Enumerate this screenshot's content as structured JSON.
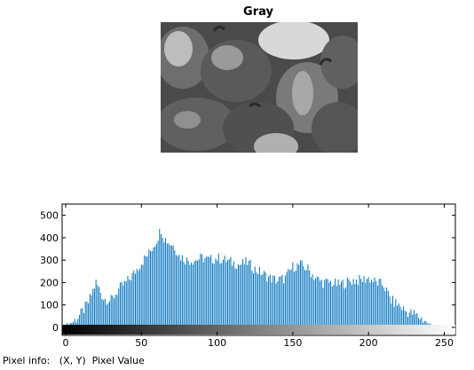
{
  "figure": {
    "title": "Gray"
  },
  "image": {
    "description_icon": "grayscale-peppers-photo"
  },
  "pixel_info": {
    "label": "Pixel info:",
    "value": "(X, Y)  Pixel Value"
  },
  "colors": {
    "bar": "#0072BD",
    "axis": "#000000",
    "background": "#ffffff"
  },
  "chart_data": {
    "type": "bar",
    "title": "",
    "xlabel": "",
    "ylabel": "",
    "xlim": [
      0,
      255
    ],
    "ylim": [
      -20,
      550
    ],
    "xticks": [
      0,
      50,
      100,
      150,
      200,
      250
    ],
    "yticks": [
      0,
      100,
      200,
      300,
      400,
      500
    ],
    "colorbar": "grayscale gradient 0-255 below x axis",
    "keypoints_x": [
      0,
      5,
      10,
      15,
      20,
      25,
      30,
      35,
      40,
      45,
      50,
      55,
      60,
      63,
      65,
      68,
      72,
      75,
      80,
      85,
      90,
      95,
      100,
      105,
      110,
      115,
      120,
      125,
      130,
      135,
      140,
      145,
      150,
      155,
      160,
      165,
      170,
      175,
      180,
      185,
      190,
      195,
      200,
      205,
      210,
      215,
      220,
      225,
      230,
      235,
      240,
      245,
      250,
      255
    ],
    "keypoints_y": [
      10,
      25,
      60,
      110,
      200,
      130,
      120,
      170,
      200,
      240,
      290,
      330,
      390,
      440,
      400,
      380,
      360,
      320,
      300,
      300,
      310,
      300,
      310,
      300,
      290,
      280,
      290,
      260,
      240,
      220,
      210,
      220,
      270,
      280,
      260,
      220,
      200,
      200,
      190,
      200,
      210,
      210,
      220,
      200,
      190,
      120,
      100,
      70,
      60,
      40,
      15,
      5,
      0,
      0
    ]
  }
}
